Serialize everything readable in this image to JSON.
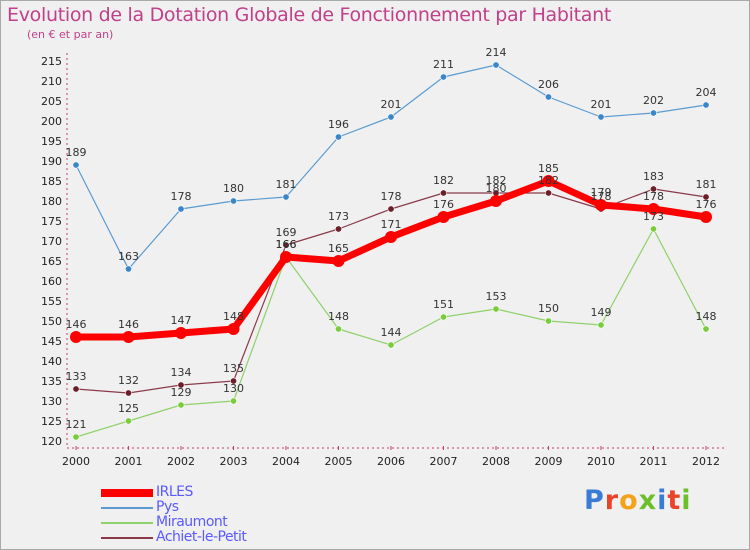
{
  "title": "Evolution de la Dotation Globale de Fonctionnement par Habitant",
  "subtitle": "(en € et par an)",
  "logo": {
    "text": "Proxiti",
    "letter_colors": [
      "#3a7bd5",
      "#e8442a",
      "#f2a31a",
      "#6cbf2a",
      "#3a7bd5",
      "#e8442a",
      "#6cbf2a"
    ]
  },
  "chart_data": {
    "type": "line",
    "x": [
      "2000",
      "2001",
      "2002",
      "2003",
      "2004",
      "2005",
      "2006",
      "2007",
      "2008",
      "2009",
      "2010",
      "2011",
      "2012"
    ],
    "ylim": [
      120,
      215
    ],
    "yticks": [
      120,
      125,
      130,
      135,
      140,
      145,
      150,
      155,
      160,
      165,
      170,
      175,
      180,
      185,
      190,
      195,
      200,
      205,
      210,
      215
    ],
    "grid": false,
    "legend_position": "bottom-left",
    "series": [
      {
        "name": "Pys",
        "color": "#5b9bd0",
        "point_color": "#3b85c9",
        "style": "thin",
        "values": [
          189,
          163,
          178,
          180,
          181,
          196,
          201,
          211,
          214,
          206,
          201,
          202,
          204
        ]
      },
      {
        "name": "Miraumont",
        "color": "#8fd16a",
        "point_color": "#7acc3c",
        "style": "thin",
        "values": [
          121,
          125,
          129,
          130,
          166,
          148,
          144,
          151,
          153,
          150,
          149,
          173,
          148
        ]
      },
      {
        "name": "Achiet-le-Petit",
        "color": "#8a3a48",
        "point_color": "#6b1f2a",
        "style": "thin",
        "values": [
          133,
          132,
          134,
          135,
          169,
          173,
          178,
          182,
          182,
          182,
          178,
          183,
          181
        ]
      },
      {
        "name": "IRLES",
        "color": "#ff0000",
        "point_color": "#ff0000",
        "style": "thick",
        "values": [
          146,
          146,
          147,
          148,
          166,
          165,
          171,
          176,
          180,
          185,
          179,
          178,
          176
        ]
      }
    ],
    "data_labels": {
      "Pys": [
        "189",
        "163",
        "178",
        "180",
        "181",
        "196",
        "201",
        "211",
        "214",
        "206",
        "201",
        "202",
        "204"
      ],
      "Miraumont": [
        "121",
        "125",
        "129",
        "130",
        "166",
        "148",
        "144",
        "151",
        "153",
        "150",
        "149",
        "173",
        "148"
      ],
      "Achiet-le-Petit": [
        "133",
        "132",
        "134",
        "135",
        "169",
        "173",
        "178",
        "182",
        "182",
        "182",
        "178",
        "183",
        "181"
      ],
      "IRLES": [
        "146",
        "146",
        "147",
        "148",
        "166",
        "165",
        "171",
        "176",
        "180",
        "185",
        "179",
        "178",
        "176"
      ]
    }
  },
  "legend": [
    {
      "name": "IRLES",
      "color": "#ff0000",
      "style": "thick"
    },
    {
      "name": "Pys",
      "color": "#5b9bd0",
      "style": "thin"
    },
    {
      "name": "Miraumont",
      "color": "#8fd16a",
      "style": "thin"
    },
    {
      "name": "Achiet-le-Petit",
      "color": "#8a3a48",
      "style": "thin"
    }
  ]
}
